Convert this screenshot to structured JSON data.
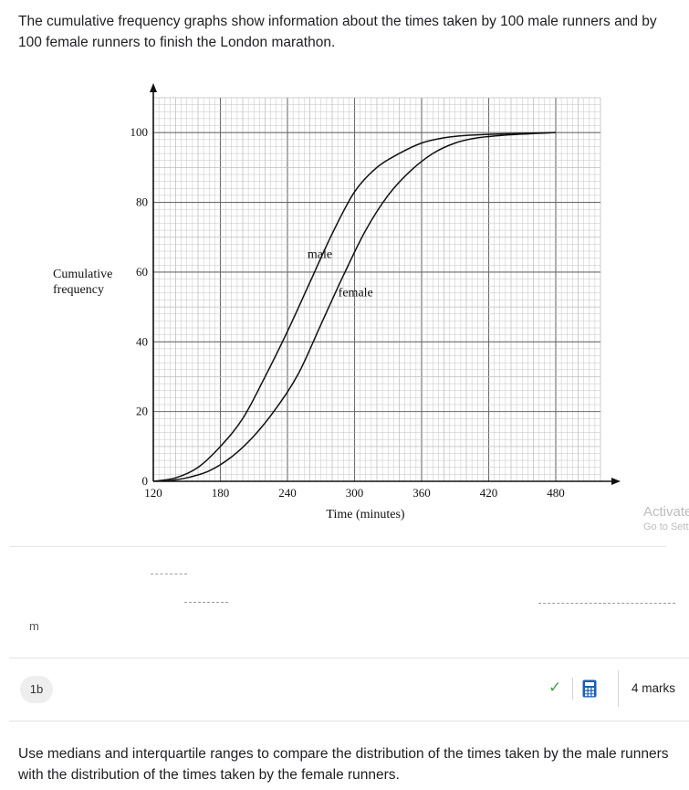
{
  "intro_text": "The cumulative frequency graphs show information about the times taken by 100 male runners and by 100 female runners to finish the London marathon.",
  "chart_data": {
    "type": "line",
    "xlabel": "Time (minutes)",
    "ylabel_lines": [
      "Cumulative",
      "frequency"
    ],
    "xlim": [
      120,
      520
    ],
    "ylim": [
      0,
      110
    ],
    "x_ticks": [
      120,
      180,
      240,
      300,
      360,
      420,
      480
    ],
    "y_ticks": [
      0,
      20,
      40,
      60,
      80,
      100
    ],
    "grid": true,
    "series": [
      {
        "name": "male",
        "points": [
          [
            120,
            0
          ],
          [
            140,
            1
          ],
          [
            160,
            4
          ],
          [
            180,
            10
          ],
          [
            200,
            18
          ],
          [
            220,
            30
          ],
          [
            240,
            43
          ],
          [
            260,
            57
          ],
          [
            280,
            71
          ],
          [
            300,
            83
          ],
          [
            320,
            90
          ],
          [
            340,
            94
          ],
          [
            360,
            97
          ],
          [
            380,
            98.5
          ],
          [
            400,
            99.2
          ],
          [
            440,
            99.7
          ],
          [
            480,
            100
          ]
        ]
      },
      {
        "name": "female",
        "points": [
          [
            130,
            0
          ],
          [
            150,
            1
          ],
          [
            170,
            3
          ],
          [
            190,
            7
          ],
          [
            210,
            13
          ],
          [
            230,
            21
          ],
          [
            250,
            31
          ],
          [
            270,
            45
          ],
          [
            290,
            59
          ],
          [
            310,
            72
          ],
          [
            330,
            82
          ],
          [
            350,
            89
          ],
          [
            370,
            94
          ],
          [
            390,
            97
          ],
          [
            410,
            98.5
          ],
          [
            440,
            99.4
          ],
          [
            480,
            100
          ]
        ]
      }
    ],
    "annotations": [
      {
        "text": "male",
        "x": 269,
        "y": 64
      },
      {
        "text": "female",
        "x": 301,
        "y": 53
      }
    ],
    "colors": {
      "grid_major": "#6b6b6b",
      "grid_minor": "#bdbdbd",
      "curve": "#111111"
    }
  },
  "overlay": {
    "activate_title": "Activate Windows",
    "activate_subtitle": "Go to Settings to activate Windows."
  },
  "fragment_char": "m",
  "question": {
    "part": "1b",
    "check_icon": "check-icon",
    "calculator_icon": "calculator-icon",
    "marks": "4 marks",
    "text": "Use medians and interquartile ranges to compare the distribution of the times taken by the male runners with the distribution of the times taken by the female runners."
  },
  "colors": {
    "accent_green": "#43a047",
    "calculator_blue": "#1a5fb4",
    "divider": "#e3e3e3"
  }
}
